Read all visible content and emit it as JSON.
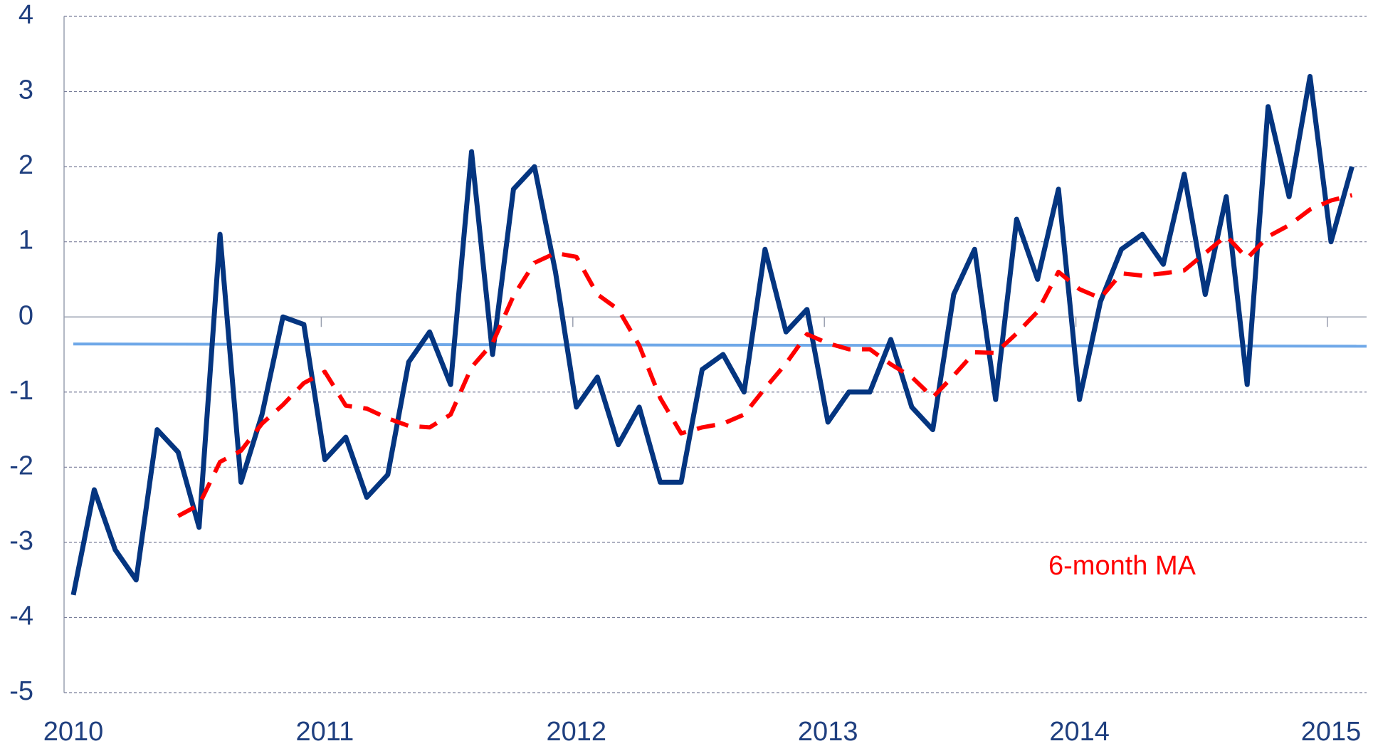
{
  "chart_data": {
    "type": "line",
    "categories": [
      "2010",
      null,
      null,
      null,
      null,
      null,
      null,
      null,
      null,
      null,
      null,
      null,
      "2011",
      null,
      null,
      null,
      null,
      null,
      null,
      null,
      null,
      null,
      null,
      null,
      "2012",
      null,
      null,
      null,
      null,
      null,
      null,
      null,
      null,
      null,
      null,
      null,
      "2013",
      null,
      null,
      null,
      null,
      null,
      null,
      null,
      null,
      null,
      null,
      null,
      "2014",
      null,
      null,
      null,
      null,
      null,
      null,
      null,
      null,
      null,
      null,
      null,
      "2015",
      null
    ],
    "series": [
      {
        "color": "#043580",
        "values": [
          -3.7,
          -2.3,
          -3.1,
          -3.5,
          -1.5,
          -1.8,
          -2.8,
          1.1,
          -2.2,
          -1.3,
          0.0,
          -0.1,
          -1.9,
          -1.6,
          -2.4,
          -2.1,
          -0.6,
          -0.2,
          -0.9,
          2.2,
          -0.5,
          1.7,
          2.0,
          0.6,
          -1.2,
          -0.8,
          -1.7,
          -1.2,
          -2.2,
          -2.2,
          -0.7,
          -0.5,
          -1.0,
          0.9,
          -0.2,
          0.1,
          -1.4,
          -1.0,
          -1.0,
          -0.3,
          -1.2,
          -1.5,
          0.3,
          0.9,
          -1.1,
          1.3,
          0.5,
          1.7,
          -1.1,
          0.2,
          0.9,
          1.1,
          0.7,
          1.9,
          0.3,
          1.6,
          -0.9,
          2.8,
          1.6,
          3.2,
          1.0,
          2.0
        ]
      },
      {
        "name": "6-month MA",
        "color": "#ff0000",
        "dashed": true,
        "values": [
          null,
          null,
          null,
          null,
          null,
          -2.65,
          -2.5,
          -1.93,
          -1.78,
          -1.42,
          -1.17,
          -0.88,
          -0.73,
          -1.18,
          -1.22,
          -1.35,
          -1.45,
          -1.47,
          -1.3,
          -0.67,
          -0.35,
          0.28,
          0.72,
          0.85,
          0.8,
          0.3,
          0.1,
          -0.38,
          -1.08,
          -1.55,
          -1.47,
          -1.42,
          -1.3,
          -0.95,
          -0.62,
          -0.23,
          -0.35,
          -0.43,
          -0.43,
          -0.63,
          -0.8,
          -1.07,
          -0.78,
          -0.47,
          -0.48,
          -0.22,
          0.07,
          0.6,
          0.37,
          0.25,
          0.58,
          0.55,
          0.58,
          0.62,
          0.85,
          1.08,
          0.78,
          1.07,
          1.22,
          1.43,
          1.55,
          1.62
        ]
      }
    ],
    "trend": {
      "color": "#6fa8e8",
      "values": [
        -0.36,
        -0.39
      ]
    },
    "ylim": [
      -5,
      4
    ],
    "yticks": [
      -5,
      -4,
      -3,
      -2,
      -1,
      0,
      1,
      2,
      3,
      4
    ],
    "grid": true
  }
}
